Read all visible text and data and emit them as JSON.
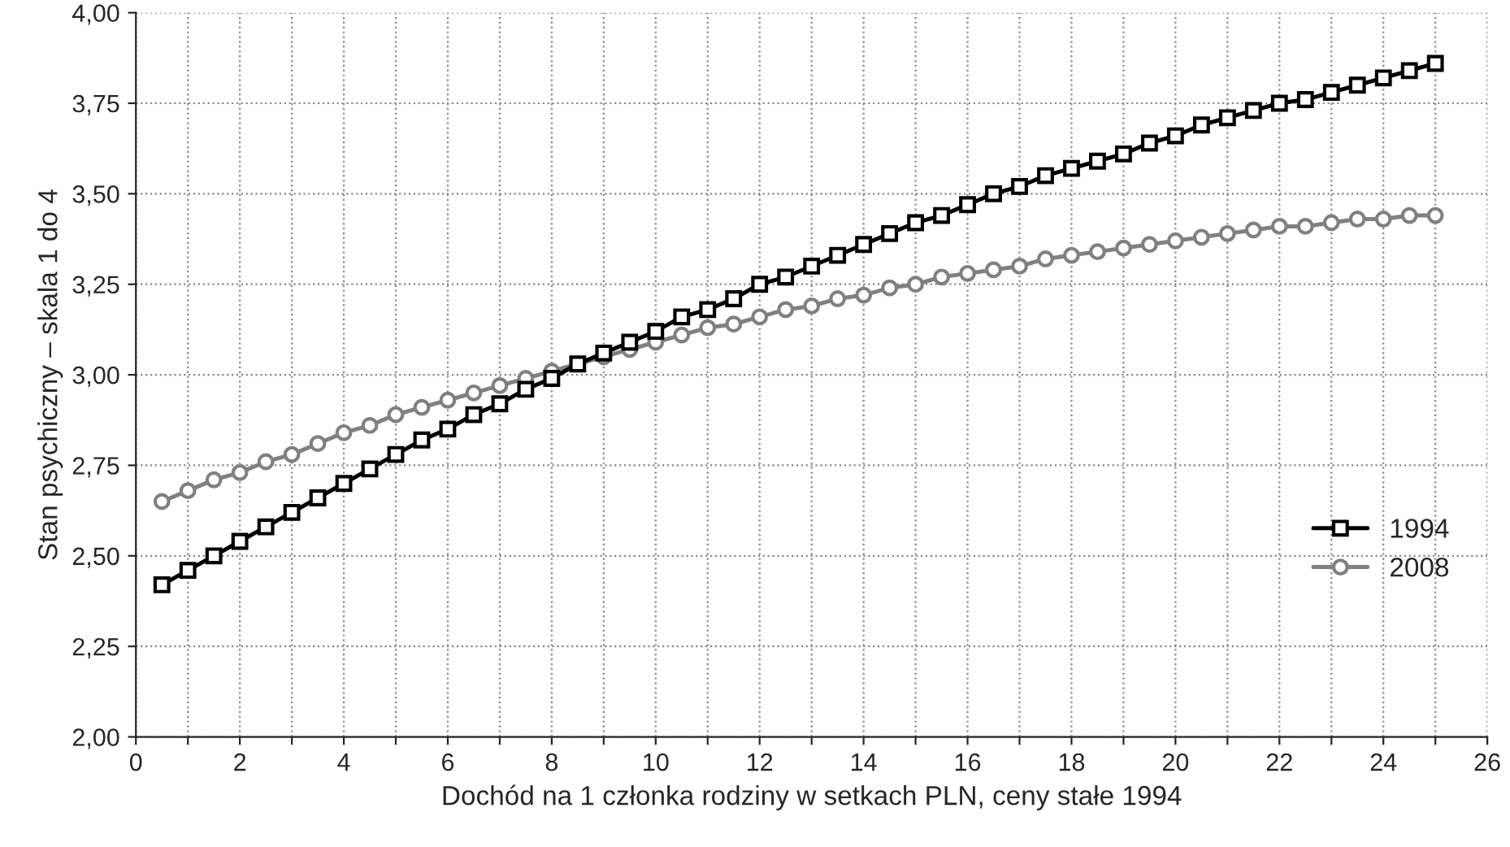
{
  "chart_data": {
    "type": "line",
    "xlabel": "Dochód na 1 członka rodziny w setkach PLN, ceny stałe 1994",
    "ylabel": "Stan psychiczny – skala 1 do 4",
    "x": [
      0.5,
      1,
      1.5,
      2,
      2.5,
      3,
      3.5,
      4,
      4.5,
      5,
      5.5,
      6,
      6.5,
      7,
      7.5,
      8,
      8.5,
      9,
      9.5,
      10,
      10.5,
      11,
      11.5,
      12,
      12.5,
      13,
      13.5,
      14,
      14.5,
      15,
      15.5,
      16,
      16.5,
      17,
      17.5,
      18,
      18.5,
      19,
      19.5,
      20,
      20.5,
      21,
      21.5,
      22,
      22.5,
      23,
      23.5,
      24,
      24.5,
      25
    ],
    "series": [
      {
        "name": "1994",
        "color": "#000000",
        "marker": "square",
        "values": [
          2.42,
          2.46,
          2.5,
          2.54,
          2.58,
          2.62,
          2.66,
          2.7,
          2.74,
          2.78,
          2.82,
          2.85,
          2.89,
          2.92,
          2.96,
          2.99,
          3.03,
          3.06,
          3.09,
          3.12,
          3.16,
          3.18,
          3.21,
          3.25,
          3.27,
          3.3,
          3.33,
          3.36,
          3.39,
          3.42,
          3.44,
          3.47,
          3.5,
          3.52,
          3.55,
          3.57,
          3.59,
          3.61,
          3.64,
          3.66,
          3.69,
          3.71,
          3.73,
          3.75,
          3.76,
          3.78,
          3.8,
          3.82,
          3.84,
          3.86
        ]
      },
      {
        "name": "2008",
        "color": "#808080",
        "marker": "circle",
        "values": [
          2.65,
          2.68,
          2.71,
          2.73,
          2.76,
          2.78,
          2.81,
          2.84,
          2.86,
          2.89,
          2.91,
          2.93,
          2.95,
          2.97,
          2.99,
          3.01,
          3.03,
          3.05,
          3.07,
          3.09,
          3.11,
          3.13,
          3.14,
          3.16,
          3.18,
          3.19,
          3.21,
          3.22,
          3.24,
          3.25,
          3.27,
          3.28,
          3.29,
          3.3,
          3.32,
          3.33,
          3.34,
          3.35,
          3.36,
          3.37,
          3.38,
          3.39,
          3.4,
          3.41,
          3.41,
          3.42,
          3.43,
          3.43,
          3.44,
          3.44
        ]
      }
    ],
    "xlim": [
      0,
      26
    ],
    "xticks": [
      0,
      {
        "value": 1,
        "label": null
      },
      2,
      {
        "value": 3,
        "label": null
      },
      4,
      {
        "value": 5,
        "label": null
      },
      6,
      {
        "value": 7,
        "label": null
      },
      8,
      {
        "value": 9,
        "label": null
      },
      10,
      {
        "value": 11,
        "label": null
      },
      12,
      {
        "value": 13,
        "label": null
      },
      14,
      {
        "value": 15,
        "label": null
      },
      16,
      {
        "value": 17,
        "label": null
      },
      18,
      {
        "value": 19,
        "label": null
      },
      20,
      {
        "value": 21,
        "label": null
      },
      22,
      {
        "value": 23,
        "label": null
      },
      24,
      {
        "value": 25,
        "label": null
      },
      26
    ],
    "ylim": [
      2,
      4
    ],
    "yticks": [
      {
        "value": 2,
        "label": "2,00"
      },
      {
        "value": 2.25,
        "label": "2,25"
      },
      {
        "value": 2.5,
        "label": "2,50"
      },
      {
        "value": 2.75,
        "label": "2,75"
      },
      {
        "value": 3,
        "label": "3,00"
      },
      {
        "value": 3.25,
        "label": "3,25"
      },
      {
        "value": 3.5,
        "label": "3,50"
      },
      {
        "value": 3.75,
        "label": "3,75"
      },
      {
        "value": 4,
        "label": "4,00"
      }
    ],
    "grid": true,
    "legend": "bottom right",
    "line_style": "solid"
  }
}
